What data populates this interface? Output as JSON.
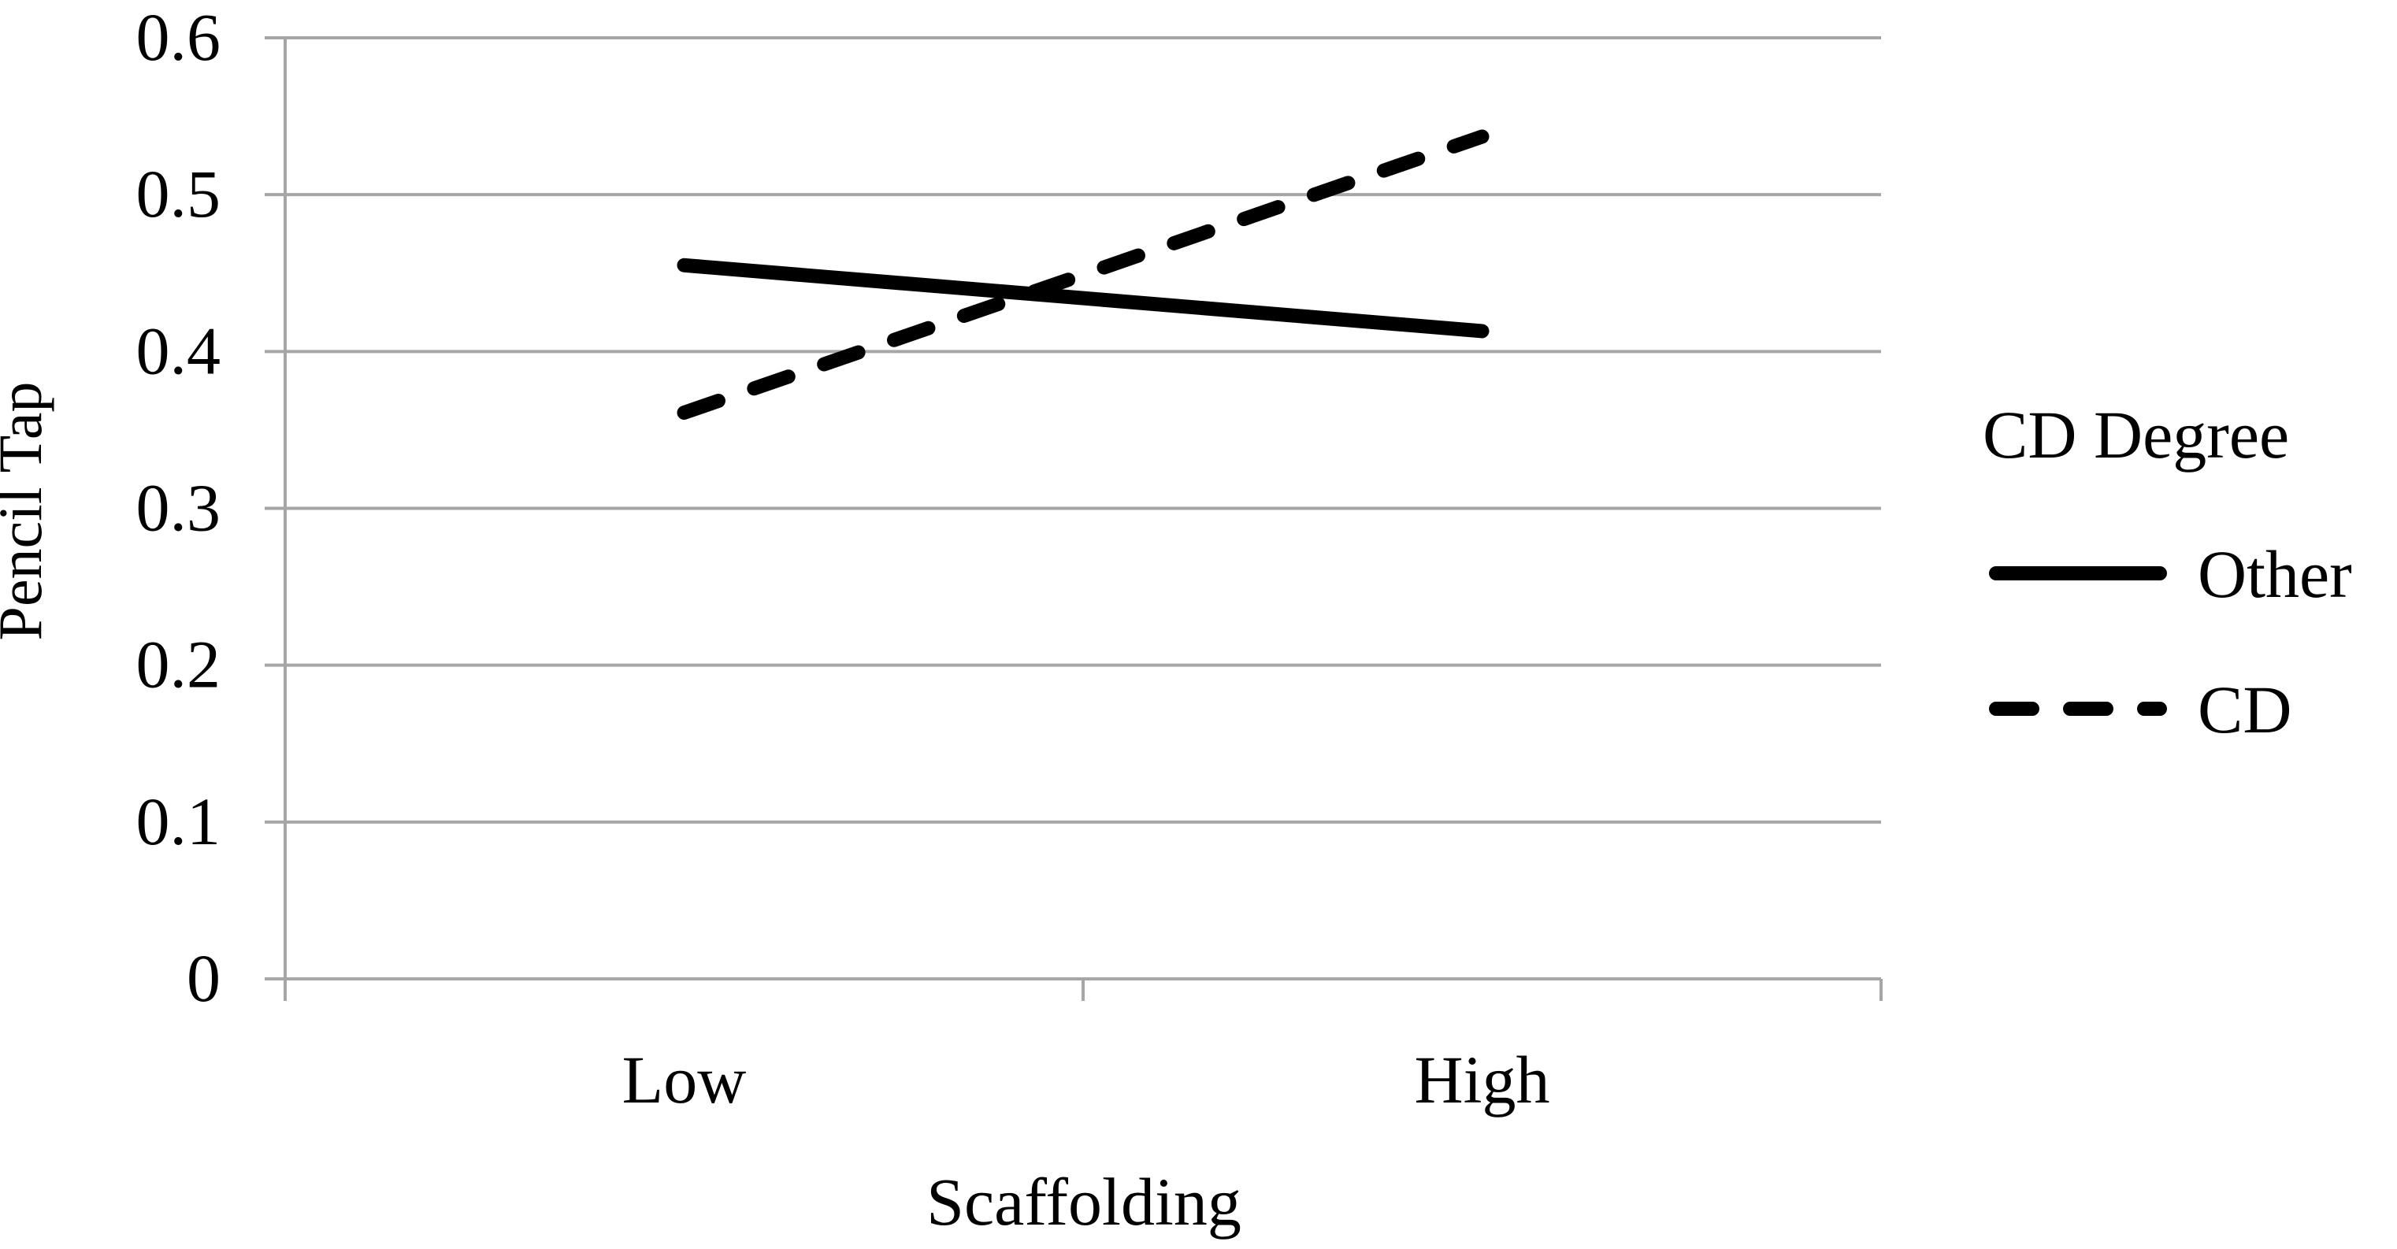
{
  "chart_data": {
    "type": "line",
    "title": "",
    "xlabel": "Scaffolding",
    "ylabel": "Pencil Tap",
    "categories": [
      "Low",
      "High"
    ],
    "ylim": [
      0,
      0.6
    ],
    "y_ticks": [
      "0",
      "0.1",
      "0.2",
      "0.3",
      "0.4",
      "0.5",
      "0.6"
    ],
    "grid": true,
    "legend_title": "CD Degree",
    "legend_position": "right",
    "series": [
      {
        "name": "Other",
        "values": [
          0.455,
          0.413
        ],
        "style": "solid",
        "color": "#000000"
      },
      {
        "name": "CD",
        "values": [
          0.361,
          0.537
        ],
        "style": "dashed",
        "color": "#000000"
      }
    ]
  },
  "colors": {
    "gridline": "#a6a6a6",
    "axis": "#a6a6a6",
    "series": "#000000"
  }
}
